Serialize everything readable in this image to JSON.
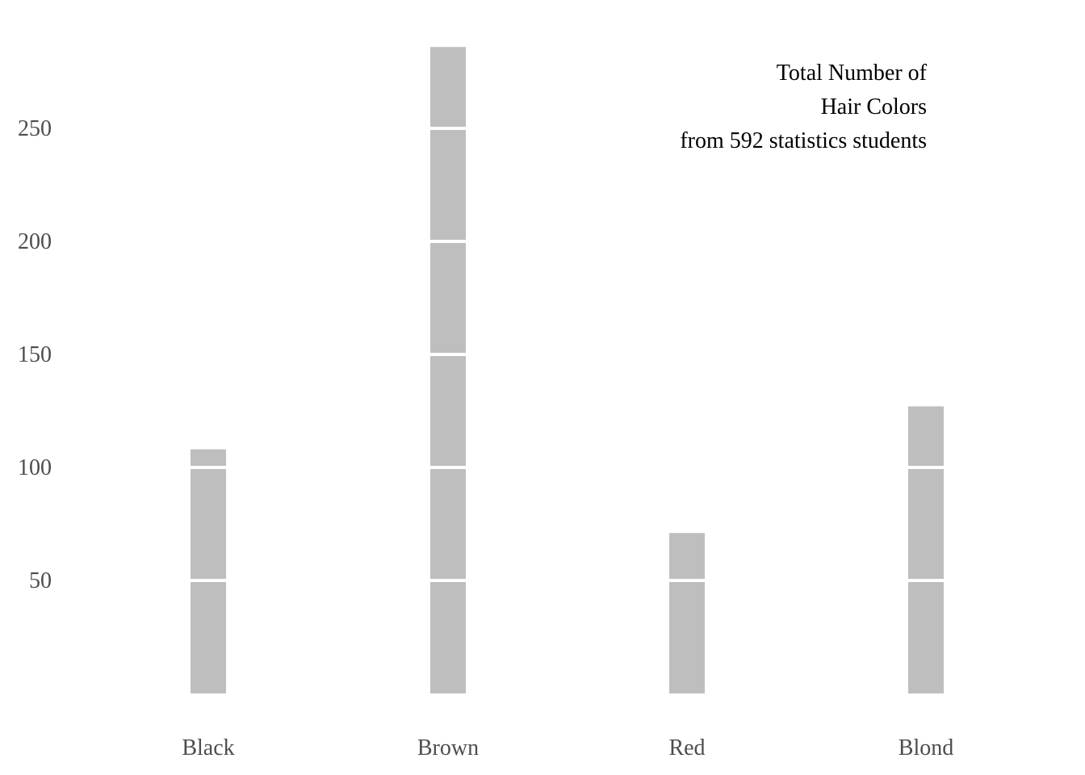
{
  "chart_data": {
    "type": "bar",
    "title_lines": [
      "Total Number of",
      "Hair Colors",
      "from 592 statistics students"
    ],
    "categories": [
      "Black",
      "Brown",
      "Red",
      "Blond"
    ],
    "values": [
      108,
      286,
      71,
      127
    ],
    "y_ticks": [
      50,
      100,
      150,
      200,
      250
    ],
    "ylim": [
      0,
      300
    ],
    "grid": "white lines drawn across bars at each tick",
    "legend": "none",
    "xlabel": "",
    "ylabel": "",
    "bar_color": "#bebebe",
    "grid_color": "#ffffff",
    "tick_label_color": "#4d4d4d",
    "title_color": "#000000"
  }
}
